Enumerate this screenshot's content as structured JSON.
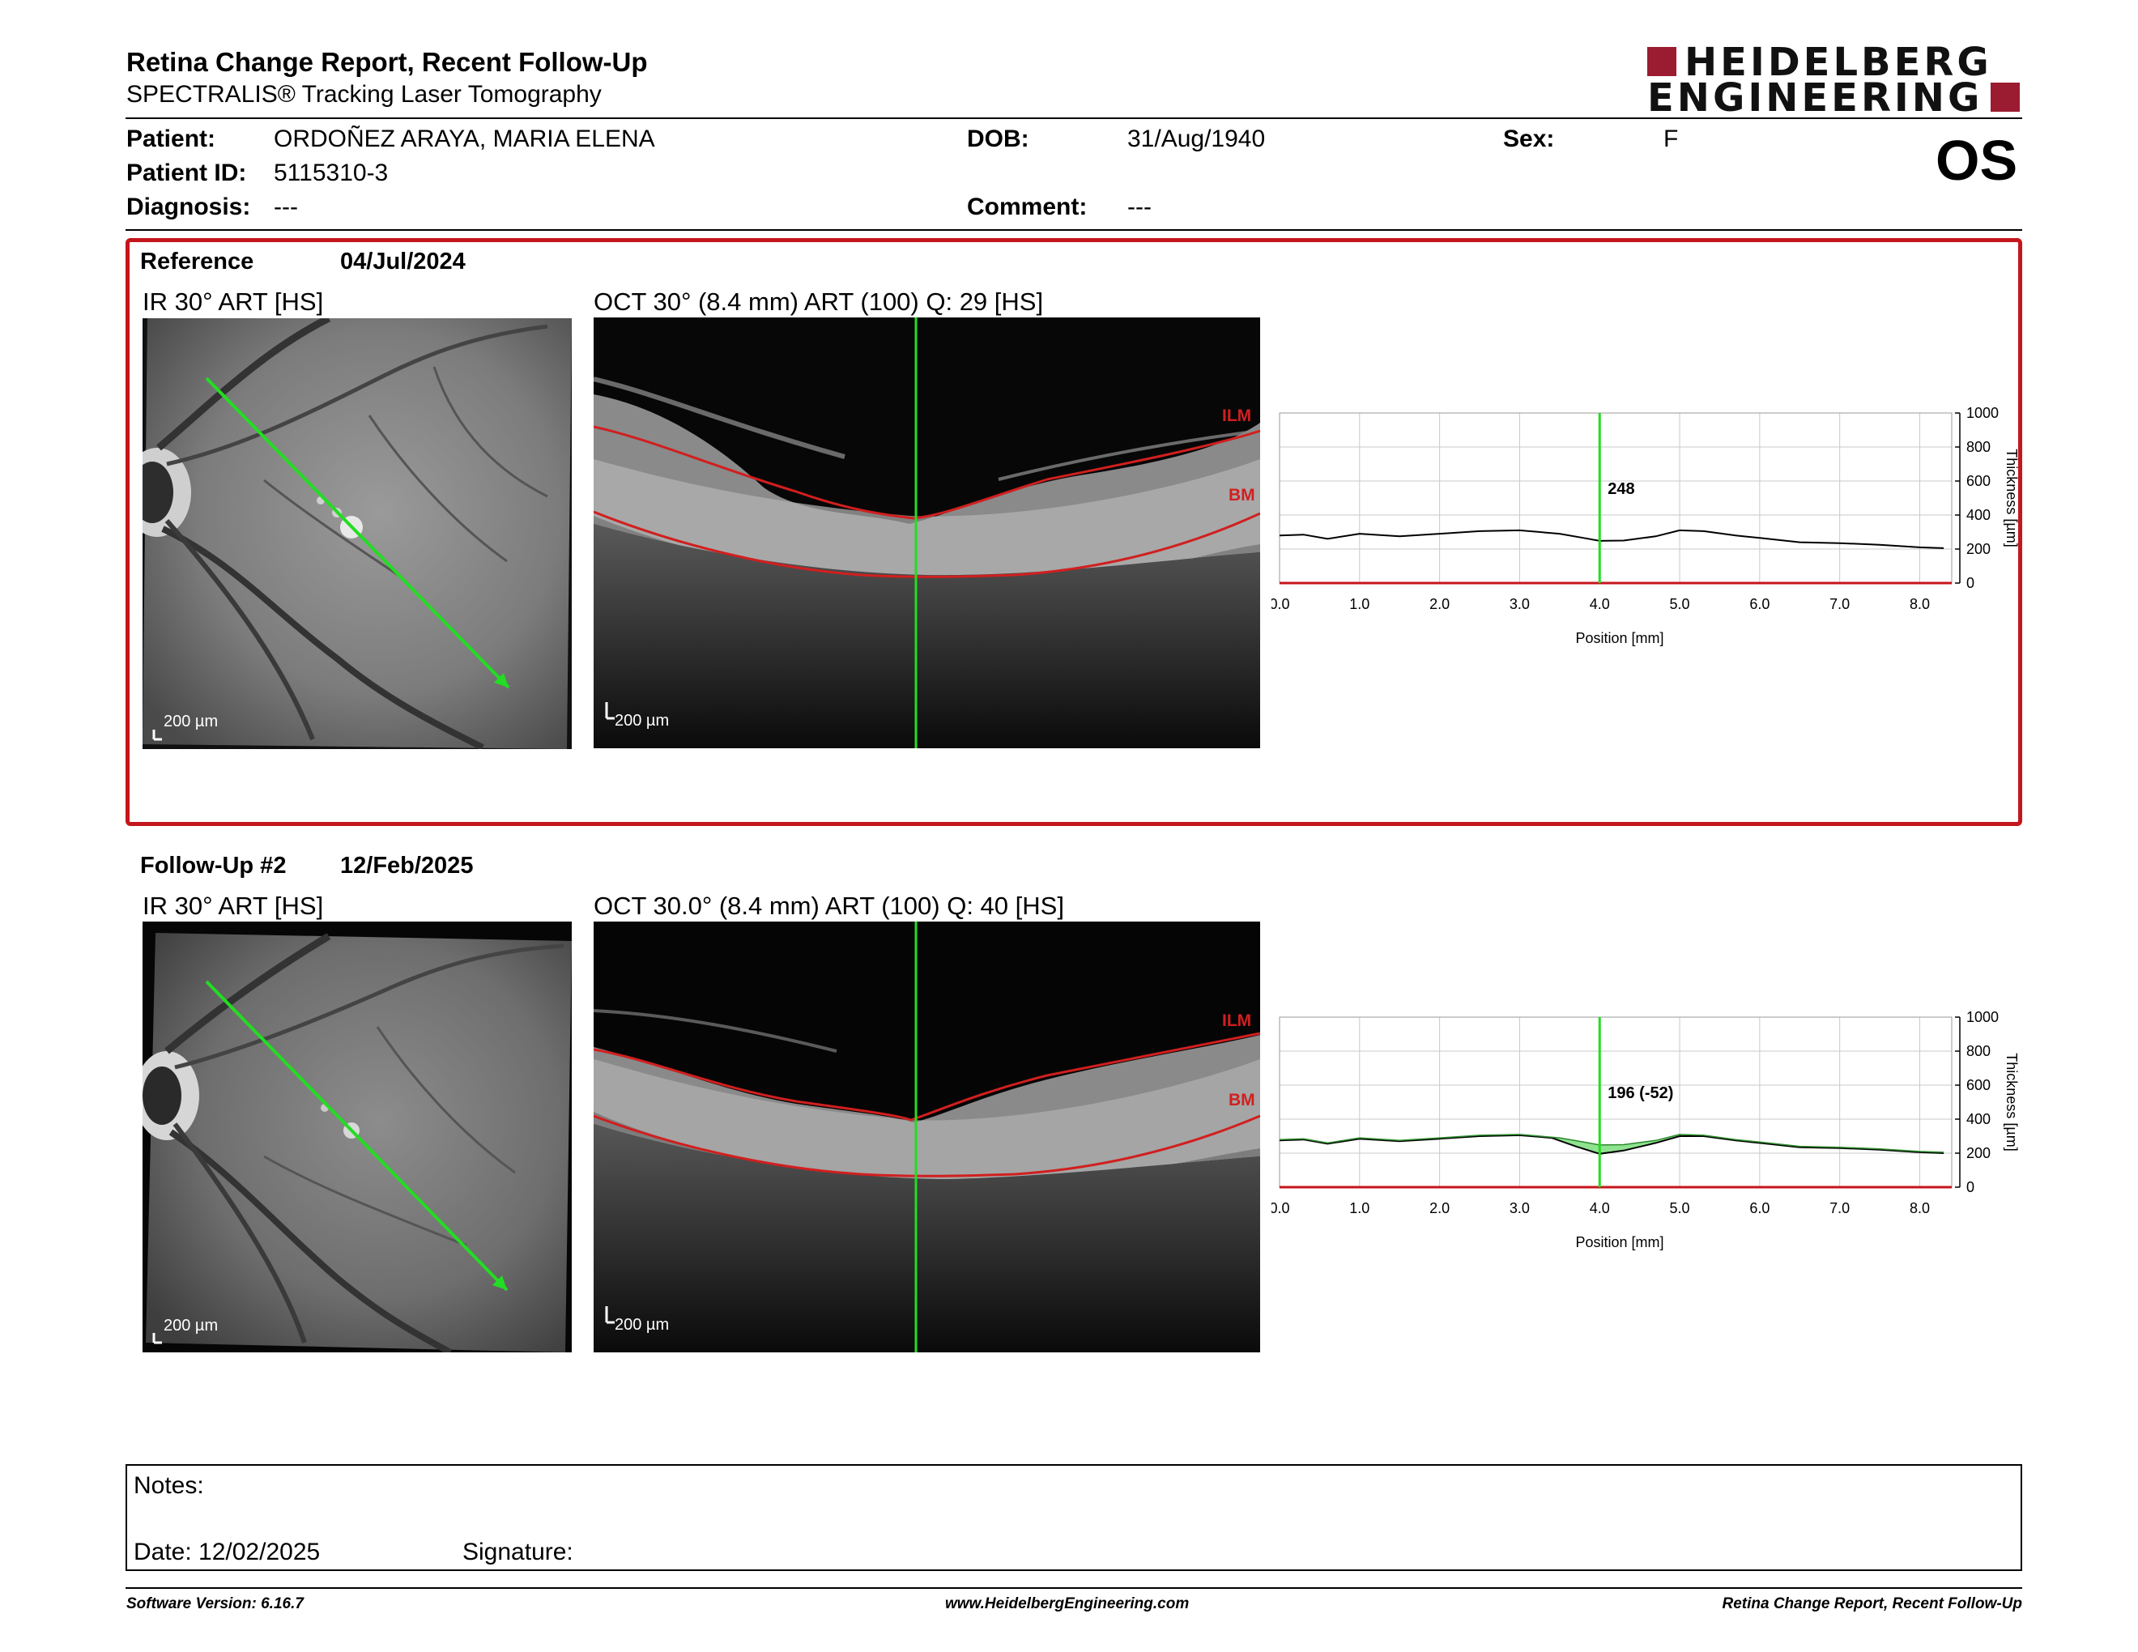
{
  "header": {
    "title": "Retina Change Report, Recent Follow-Up",
    "subtitle": "SPECTRALIS® Tracking Laser Tomography",
    "logo_line1": "HEIDELBERG",
    "logo_line2": "ENGINEERING",
    "eye": "OS"
  },
  "patient": {
    "patient_label": "Patient:",
    "patient_value": "ORDOÑEZ ARAYA, MARIA ELENA",
    "id_label": "Patient ID:",
    "id_value": "5115310-3",
    "diagnosis_label": "Diagnosis:",
    "diagnosis_value": "---",
    "dob_label": "DOB:",
    "dob_value": "31/Aug/1940",
    "comment_label": "Comment:",
    "comment_value": "---",
    "sex_label": "Sex:",
    "sex_value": "F"
  },
  "reference": {
    "label": "Reference",
    "date": "04/Jul/2024",
    "ir_label": "IR 30° ART [HS]",
    "oct_label": "OCT 30° (8.4 mm) ART (100) Q: 29 [HS]",
    "scale": "200 µm",
    "ilm": "ILM",
    "bm": "BM"
  },
  "followup": {
    "label": "Follow-Up #2",
    "date": "12/Feb/2025",
    "ir_label": "IR 30° ART [HS]",
    "oct_label": "OCT 30.0° (8.4 mm) ART (100) Q: 40 [HS]",
    "scale": "200 µm",
    "ilm": "ILM",
    "bm": "BM"
  },
  "chart_data": [
    {
      "type": "line",
      "xlabel": "Position [mm]",
      "ylabel": "Thickness [µm]",
      "xlim": [
        0,
        8.4
      ],
      "ylim": [
        0,
        1000
      ],
      "x_ticks": [
        "0.0",
        "1.0",
        "2.0",
        "3.0",
        "4.0",
        "5.0",
        "6.0",
        "7.0",
        "8.0"
      ],
      "y_ticks": [
        "0",
        "200",
        "400",
        "600",
        "800",
        "1000"
      ],
      "grid": true,
      "cursor_x": 4.0,
      "cursor_label": "248",
      "series": [
        {
          "values": [
            [
              0.0,
              280
            ],
            [
              0.3,
              285
            ],
            [
              0.6,
              260
            ],
            [
              1.0,
              290
            ],
            [
              1.5,
              275
            ],
            [
              2.0,
              290
            ],
            [
              2.5,
              305
            ],
            [
              3.0,
              310
            ],
            [
              3.5,
              290
            ],
            [
              3.8,
              265
            ],
            [
              4.0,
              248
            ],
            [
              4.3,
              250
            ],
            [
              4.7,
              275
            ],
            [
              5.0,
              310
            ],
            [
              5.3,
              305
            ],
            [
              5.7,
              280
            ],
            [
              6.0,
              265
            ],
            [
              6.5,
              240
            ],
            [
              7.0,
              235
            ],
            [
              7.5,
              225
            ],
            [
              8.0,
              210
            ],
            [
              8.3,
              205
            ]
          ]
        }
      ]
    },
    {
      "type": "line",
      "xlabel": "Position [mm]",
      "ylabel": "Thickness [µm]",
      "xlim": [
        0,
        8.4
      ],
      "ylim": [
        0,
        1000
      ],
      "x_ticks": [
        "0.0",
        "1.0",
        "2.0",
        "3.0",
        "4.0",
        "5.0",
        "6.0",
        "7.0",
        "8.0"
      ],
      "y_ticks": [
        "0",
        "200",
        "400",
        "600",
        "800",
        "1000"
      ],
      "grid": true,
      "cursor_x": 4.0,
      "cursor_label": "196 (-52)",
      "series": [
        {
          "values": [
            [
              0.0,
              275
            ],
            [
              0.3,
              280
            ],
            [
              0.6,
              255
            ],
            [
              1.0,
              285
            ],
            [
              1.5,
              270
            ],
            [
              2.0,
              285
            ],
            [
              2.5,
              300
            ],
            [
              3.0,
              305
            ],
            [
              3.4,
              290
            ],
            [
              3.7,
              240
            ],
            [
              4.0,
              196
            ],
            [
              4.3,
              215
            ],
            [
              4.7,
              260
            ],
            [
              5.0,
              300
            ],
            [
              5.3,
              300
            ],
            [
              5.7,
              275
            ],
            [
              6.0,
              260
            ],
            [
              6.5,
              235
            ],
            [
              7.0,
              230
            ],
            [
              7.5,
              220
            ],
            [
              8.0,
              205
            ],
            [
              8.3,
              200
            ]
          ]
        },
        {
          "values": [
            [
              0.0,
              280
            ],
            [
              0.3,
              285
            ],
            [
              0.6,
              260
            ],
            [
              1.0,
              290
            ],
            [
              1.5,
              275
            ],
            [
              2.0,
              290
            ],
            [
              2.5,
              305
            ],
            [
              3.0,
              310
            ],
            [
              3.5,
              290
            ],
            [
              3.8,
              265
            ],
            [
              4.0,
              248
            ],
            [
              4.3,
              250
            ],
            [
              4.7,
              275
            ],
            [
              5.0,
              310
            ],
            [
              5.3,
              305
            ],
            [
              5.7,
              280
            ],
            [
              6.0,
              265
            ],
            [
              6.5,
              240
            ],
            [
              7.0,
              235
            ],
            [
              7.5,
              225
            ],
            [
              8.0,
              210
            ],
            [
              8.3,
              205
            ]
          ]
        }
      ]
    }
  ],
  "colors": {
    "accent_red": "#c4161c",
    "cursor_green": "#22dd22",
    "logo_red": "#9b1b30"
  },
  "notes": {
    "label": "Notes:",
    "date_label": "Date: 12/02/2025",
    "signature_label": "Signature:"
  },
  "footer": {
    "left": "Software Version: 6.16.7",
    "center": "www.HeidelbergEngineering.com",
    "right": "Retina Change Report, Recent Follow-Up"
  }
}
